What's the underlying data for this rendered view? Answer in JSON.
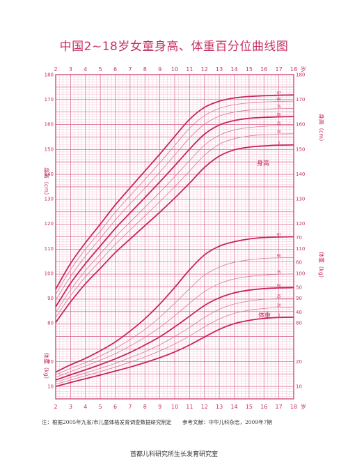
{
  "title": "中国2~18岁女童身高、体重百分位曲线图",
  "note": "注：根据2005年九省/市儿童体格发育调查数据研究制定",
  "reference": "参考文献：中华儿科杂志，2009年7期",
  "footer": "首都儿科研究所生长发育研究室",
  "colors": {
    "grid_minor": "#f2b8cc",
    "grid_major": "#dc7096",
    "axis": "#c8305e",
    "main_curve": "#c8245a",
    "minor_curve": "#d77aa0",
    "text": "#c8305e"
  },
  "chart_data": {
    "type": "line",
    "x_unit": "岁",
    "x_ticks": [
      2,
      3,
      4,
      5,
      6,
      7,
      8,
      9,
      10,
      11,
      12,
      13,
      14,
      15,
      16,
      17,
      18
    ],
    "height": {
      "label": "身高",
      "axis_label": "身高（cm）",
      "ylim": [
        80,
        180
      ],
      "y_ticks": [
        80,
        90,
        100,
        110,
        120,
        130,
        140,
        150,
        160,
        170,
        180
      ],
      "x": [
        2,
        3,
        4,
        5,
        6,
        7,
        8,
        9,
        10,
        11,
        12,
        13,
        14,
        15,
        16,
        17,
        18
      ],
      "series": [
        {
          "name": "97",
          "major": true,
          "values": [
            93.6,
            104,
            112.3,
            119.8,
            127.5,
            134.4,
            141.2,
            148,
            155.1,
            162,
            166.8,
            169.3,
            170.6,
            171.2,
            171.5,
            171.7,
            171.8
          ]
        },
        {
          "name": "90",
          "major": false,
          "values": [
            91.5,
            101.5,
            109.7,
            117,
            124.6,
            131.2,
            137.8,
            144.5,
            151.5,
            158.4,
            163.5,
            166.4,
            167.9,
            168.6,
            169,
            169.2,
            169.3
          ]
        },
        {
          "name": "75",
          "major": false,
          "values": [
            89.2,
            98.8,
            106.9,
            114.1,
            121.4,
            128,
            134.3,
            140.8,
            147.6,
            154.5,
            160,
            163.3,
            164.9,
            165.7,
            166.1,
            166.3,
            166.4
          ]
        },
        {
          "name": "50",
          "major": true,
          "values": [
            86.5,
            96,
            103.9,
            111,
            118,
            124.3,
            130.5,
            136.8,
            143.3,
            150,
            156,
            159.7,
            161.5,
            162.4,
            162.8,
            163,
            163.1
          ]
        },
        {
          "name": "25",
          "major": false,
          "values": [
            84.2,
            93.3,
            101.1,
            107.8,
            114.6,
            120.6,
            126.6,
            132.6,
            138.9,
            145.4,
            151.6,
            155.6,
            157.7,
            158.7,
            159.2,
            159.5,
            159.6
          ]
        },
        {
          "name": "10",
          "major": false,
          "values": [
            82.3,
            91,
            98.6,
            105.1,
            111.6,
            117.4,
            123.1,
            128.9,
            134.9,
            141.2,
            147.5,
            152,
            154.2,
            155.3,
            155.8,
            156.1,
            156.2
          ]
        },
        {
          "name": "3",
          "major": true,
          "values": [
            80.2,
            88.5,
            95.8,
            102,
            108.3,
            113.8,
            119.2,
            124.6,
            130.3,
            136.3,
            142.6,
            147.2,
            149.7,
            150.8,
            151.3,
            151.6,
            151.7
          ]
        }
      ]
    },
    "weight": {
      "label": "体重",
      "axis_label": "体重（kg）",
      "y_ticks_upper": [
        40,
        50,
        60,
        70
      ],
      "y_ticks_lower": [
        10,
        20
      ],
      "x": [
        2,
        3,
        4,
        5,
        6,
        7,
        8,
        9,
        10,
        11,
        12,
        13,
        14,
        15,
        16,
        17,
        18
      ],
      "series": [
        {
          "name": "97",
          "major": true,
          "values": [
            15.8,
            18.7,
            21.3,
            24.4,
            27.9,
            32.3,
            37.3,
            43.2,
            49.9,
            57,
            63,
            66.5,
            68.3,
            69.4,
            70,
            70.2,
            70.3
          ]
        },
        {
          "name": "90",
          "major": false,
          "values": [
            14.7,
            17.3,
            19.6,
            22.3,
            25.3,
            28.9,
            33,
            37.9,
            43.5,
            49.4,
            54.8,
            58.1,
            60,
            61,
            61.6,
            61.8,
            61.9
          ]
        },
        {
          "name": "75",
          "major": false,
          "values": [
            13.7,
            16,
            18.2,
            20.6,
            23.2,
            26.3,
            29.8,
            33.8,
            38.5,
            43.5,
            48.2,
            51.4,
            53.3,
            54.3,
            54.9,
            55.2,
            55.3
          ]
        },
        {
          "name": "50",
          "major": true,
          "values": [
            12.6,
            14.7,
            16.7,
            18.8,
            21.1,
            23.7,
            26.7,
            30,
            34,
            38.3,
            42.6,
            45.7,
            47.7,
            48.8,
            49.4,
            49.7,
            49.8
          ]
        },
        {
          "name": "25",
          "major": false,
          "values": [
            11.7,
            13.6,
            15.4,
            17.3,
            19.3,
            21.6,
            24,
            26.8,
            30.1,
            33.8,
            37.8,
            41.1,
            43.2,
            44.4,
            45.1,
            45.4,
            45.5
          ]
        },
        {
          "name": "10",
          "major": false,
          "values": [
            10.9,
            12.6,
            14.3,
            16,
            17.8,
            19.8,
            21.9,
            24.3,
            27.1,
            30.3,
            34,
            37.2,
            39.4,
            40.7,
            41.4,
            41.8,
            41.9
          ]
        },
        {
          "name": "3",
          "major": true,
          "values": [
            10,
            11.6,
            13.1,
            14.6,
            16.2,
            17.8,
            19.6,
            21.6,
            23.9,
            26.7,
            29.9,
            33,
            35.3,
            36.6,
            37.4,
            37.8,
            37.9
          ]
        }
      ]
    }
  }
}
